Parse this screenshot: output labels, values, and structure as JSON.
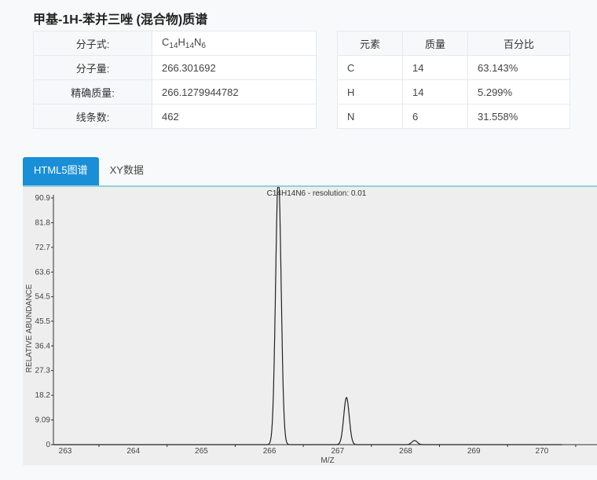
{
  "page_title": "甲基-1H-苯并三唑 (混合物)质谱",
  "info_table": {
    "rows": [
      {
        "label": "分子式:",
        "value_parts": [
          "C",
          "14",
          "H",
          "14",
          "N",
          "6"
        ]
      },
      {
        "label": "分子量:",
        "value": "266.301692"
      },
      {
        "label": "精确质量:",
        "value": "266.1279944782"
      },
      {
        "label": "线条数:",
        "value": "462"
      }
    ]
  },
  "element_table": {
    "headers": [
      "元素",
      "质量",
      "百分比"
    ],
    "rows": [
      [
        "C",
        "14",
        "63.143%"
      ],
      [
        "H",
        "14",
        "5.299%"
      ],
      [
        "N",
        "6",
        "31.558%"
      ]
    ]
  },
  "tabs": [
    {
      "label": "HTML5图谱",
      "active": true
    },
    {
      "label": "XY数据",
      "active": false
    }
  ],
  "colors": {
    "accent": "#1a8fd8",
    "plot_bg": "#eeeeee",
    "line": "#222222"
  },
  "chart_data": {
    "type": "line",
    "title": "C14H14N6 - resolution: 0.01",
    "xlabel": "M/Z",
    "ylabel": "RELATIVE ABUNDANCE",
    "xlim": [
      262.8,
      270.9
    ],
    "ylim": [
      0,
      90.9
    ],
    "xticks": [
      "263",
      "264",
      "265",
      "266",
      "267",
      "268",
      "269",
      "270"
    ],
    "yticks": [
      "0",
      "9.09",
      "18.2",
      "27.3",
      "36.4",
      "45.5",
      "54.5",
      "63.6",
      "72.7",
      "81.8",
      "90.9"
    ],
    "peaks": [
      {
        "mz": 266.13,
        "abundance": 100
      },
      {
        "mz": 267.13,
        "abundance": 17.4
      },
      {
        "mz": 268.13,
        "abundance": 1.5
      }
    ],
    "grid": false
  }
}
